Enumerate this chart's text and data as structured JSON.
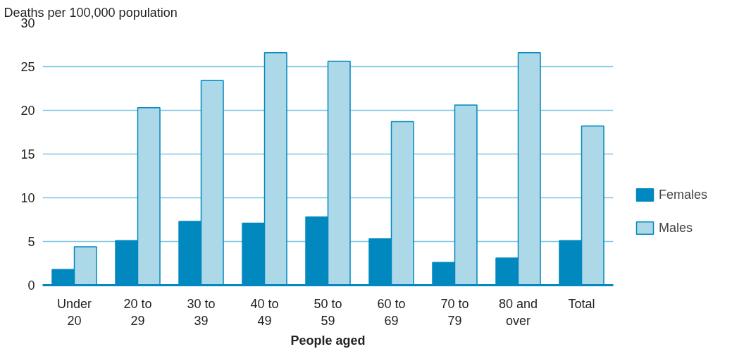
{
  "chart_data": {
    "type": "bar",
    "ylabel": "Deaths per 100,000 population",
    "xlabel": "People aged",
    "categories": [
      "Under 20",
      "20 to 29",
      "30 to 39",
      "40 to 49",
      "50 to 59",
      "60 to 69",
      "70 to 79",
      "80 and over",
      "Total"
    ],
    "series": [
      {
        "name": "Females",
        "color": "#0088bf",
        "values": [
          1.8,
          5.1,
          7.3,
          7.1,
          7.8,
          5.3,
          2.6,
          3.1,
          5.1
        ]
      },
      {
        "name": "Males",
        "color": "#add8e8",
        "values": [
          4.4,
          20.3,
          23.4,
          26.6,
          25.6,
          18.7,
          20.6,
          26.6,
          18.2
        ]
      }
    ],
    "ylim": [
      0,
      30
    ],
    "yticks": [
      0,
      5,
      10,
      15,
      20,
      25,
      30
    ],
    "grid": "y",
    "legend": "right"
  }
}
